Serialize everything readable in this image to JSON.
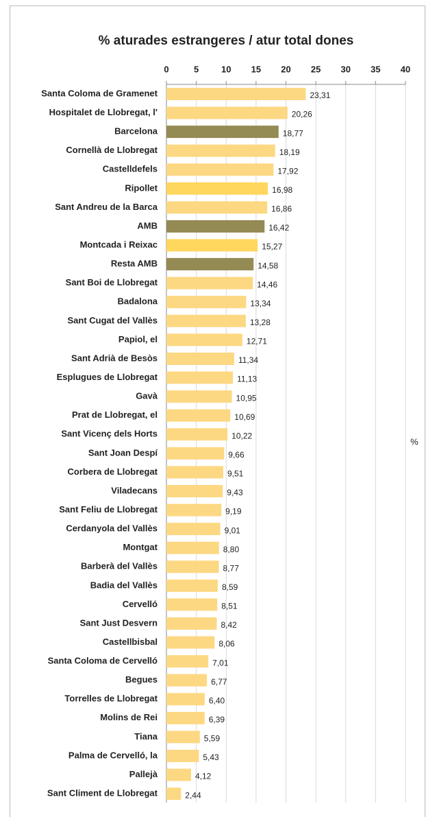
{
  "chart_data": {
    "type": "bar",
    "orientation": "horizontal",
    "title": "% aturades estrangeres / atur total dones",
    "unit_label": "%",
    "categories": [
      "Santa Coloma de Gramenet",
      "Hospitalet de Llobregat, l'",
      "Barcelona",
      "Cornellà de Llobregat",
      "Castelldefels",
      "Ripollet",
      "Sant Andreu de la Barca",
      "AMB",
      "Montcada i Reixac",
      "Resta AMB",
      "Sant Boi de Llobregat",
      "Badalona",
      "Sant Cugat del Vallès",
      "Papiol, el",
      "Sant Adrià de Besòs",
      "Esplugues de Llobregat",
      "Gavà",
      "Prat de Llobregat, el",
      "Sant Vicenç dels Horts",
      "Sant Joan Despí",
      "Corbera de Llobregat",
      "Viladecans",
      "Sant Feliu de Llobregat",
      "Cerdanyola del Vallès",
      "Montgat",
      "Barberà del Vallès",
      "Badia del Vallès",
      "Cervelló",
      "Sant Just Desvern",
      "Castellbisbal",
      "Santa Coloma de Cervelló",
      "Begues",
      "Torrelles de Llobregat",
      "Molins de Rei",
      "Tiana",
      "Palma de Cervelló, la",
      "Pallejà",
      "Sant Climent de Llobregat"
    ],
    "values": [
      23.31,
      20.26,
      18.77,
      18.19,
      17.92,
      16.98,
      16.86,
      16.42,
      15.27,
      14.58,
      14.46,
      13.34,
      13.28,
      12.71,
      11.34,
      11.13,
      10.95,
      10.69,
      10.22,
      9.66,
      9.51,
      9.43,
      9.19,
      9.01,
      8.8,
      8.77,
      8.59,
      8.51,
      8.42,
      8.06,
      7.01,
      6.77,
      6.4,
      6.39,
      5.59,
      5.43,
      4.12,
      2.44
    ],
    "value_labels": [
      "23,31",
      "20,26",
      "18,77",
      "18,19",
      "17,92",
      "16,98",
      "16,86",
      "16,42",
      "15,27",
      "14,58",
      "14,46",
      "13,34",
      "13,28",
      "12,71",
      "11,34",
      "11,13",
      "10,95",
      "10,69",
      "10,22",
      "9,66",
      "9,51",
      "9,43",
      "9,19",
      "9,01",
      "8,80",
      "8,77",
      "8,59",
      "8,51",
      "8,42",
      "8,06",
      "7,01",
      "6,77",
      "6,40",
      "6,39",
      "5,59",
      "5,43",
      "4,12",
      "2,44"
    ],
    "colors": [
      "#fdd882",
      "#fdd882",
      "#948a54",
      "#fdd882",
      "#fdd882",
      "#ffd75e",
      "#fdd882",
      "#948a54",
      "#ffd75e",
      "#948a54",
      "#fdd882",
      "#fdd882",
      "#fdd882",
      "#fdd882",
      "#fdd882",
      "#fdd882",
      "#fdd882",
      "#fdd882",
      "#fdd882",
      "#fdd882",
      "#fdd882",
      "#fdd882",
      "#fdd882",
      "#fdd882",
      "#fdd882",
      "#fdd882",
      "#fdd882",
      "#fdd882",
      "#fdd882",
      "#fdd882",
      "#fdd882",
      "#fdd882",
      "#fdd882",
      "#fdd882",
      "#fdd882",
      "#fdd882",
      "#fdd882",
      "#fdd882"
    ],
    "xlim": [
      0,
      40
    ],
    "xticks": [
      0,
      5,
      10,
      15,
      20,
      25,
      30,
      35,
      40
    ],
    "grid": true
  }
}
